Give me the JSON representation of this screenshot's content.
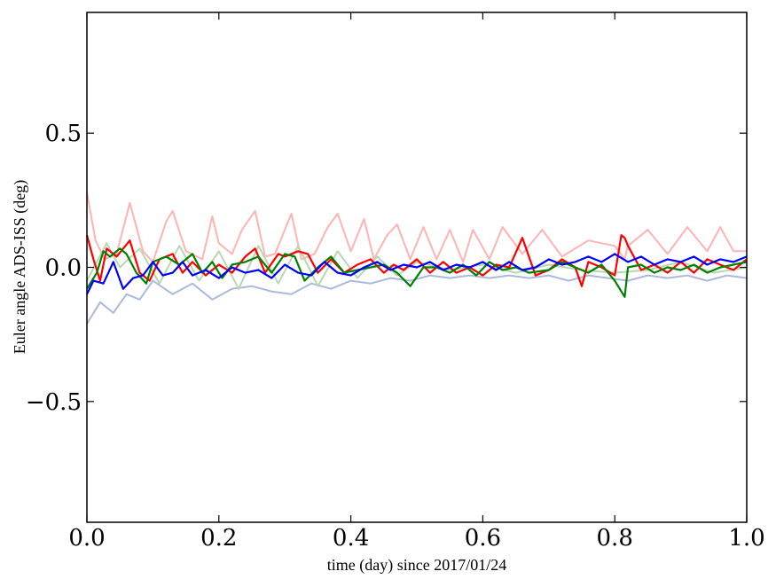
{
  "chart_data": {
    "type": "line",
    "xlabel": "time (day) since 2017/01/24",
    "ylabel": "Euler angle ADS-ISS (deg)",
    "xlim": [
      0.0,
      1.0
    ],
    "ylim": [
      -0.95,
      0.95
    ],
    "xticks": [
      {
        "value": 0.0,
        "label": "0.0"
      },
      {
        "value": 0.2,
        "label": "0.2"
      },
      {
        "value": 0.4,
        "label": "0.4"
      },
      {
        "value": 0.6,
        "label": "0.6"
      },
      {
        "value": 0.8,
        "label": "0.8"
      },
      {
        "value": 1.0,
        "label": "1.0"
      }
    ],
    "yticks": [
      {
        "value": -0.5,
        "label": "−0.5"
      },
      {
        "value": 0.0,
        "label": "0.0"
      },
      {
        "value": 0.5,
        "label": "0.5"
      }
    ],
    "grid": false,
    "legend": "none",
    "series": [
      {
        "color": "#ffb3b3",
        "x": [
          0,
          0.013,
          0.027,
          0.045,
          0.065,
          0.085,
          0.1,
          0.12,
          0.13,
          0.15,
          0.175,
          0.19,
          0.2,
          0.22,
          0.235,
          0.255,
          0.27,
          0.285,
          0.31,
          0.325,
          0.345,
          0.365,
          0.38,
          0.4,
          0.42,
          0.435,
          0.455,
          0.47,
          0.49,
          0.51,
          0.53,
          0.55,
          0.57,
          0.585,
          0.61,
          0.63,
          0.66,
          0.69,
          0.72,
          0.76,
          0.8,
          0.815,
          0.82,
          0.85,
          0.88,
          0.91,
          0.94,
          0.96,
          0.98,
          1.0
        ],
        "y": [
          0.28,
          0.1,
          0.03,
          0.05,
          0.24,
          0.06,
          0.02,
          0.17,
          0.21,
          0.06,
          0.03,
          0.19,
          0.09,
          0.05,
          0.14,
          0.21,
          0.04,
          0.05,
          0.2,
          0.03,
          0.05,
          0.15,
          0.2,
          0.06,
          0.18,
          0.03,
          0.12,
          0.16,
          0.03,
          0.15,
          0.03,
          0.14,
          0.02,
          0.14,
          0.03,
          0.15,
          0.05,
          0.14,
          0.04,
          0.1,
          0.08,
          0.03,
          0.08,
          0.14,
          0.05,
          0.15,
          0.06,
          0.15,
          0.06,
          0.06
        ]
      },
      {
        "color": "#aab9dd",
        "x": [
          0,
          0.02,
          0.04,
          0.06,
          0.08,
          0.1,
          0.13,
          0.16,
          0.19,
          0.22,
          0.25,
          0.28,
          0.31,
          0.34,
          0.37,
          0.4,
          0.43,
          0.46,
          0.49,
          0.52,
          0.55,
          0.58,
          0.61,
          0.64,
          0.67,
          0.7,
          0.73,
          0.76,
          0.79,
          0.82,
          0.85,
          0.88,
          0.91,
          0.94,
          0.97,
          1.0
        ],
        "y": [
          -0.21,
          -0.13,
          -0.17,
          -0.1,
          -0.12,
          -0.05,
          -0.1,
          -0.06,
          -0.12,
          -0.08,
          -0.07,
          -0.09,
          -0.1,
          -0.06,
          -0.08,
          -0.05,
          -0.06,
          -0.04,
          -0.05,
          -0.03,
          -0.04,
          -0.03,
          -0.04,
          -0.03,
          -0.04,
          -0.03,
          -0.05,
          -0.03,
          -0.04,
          -0.05,
          -0.03,
          -0.04,
          -0.03,
          -0.05,
          -0.03,
          -0.04
        ]
      },
      {
        "color": "#b7d7b0",
        "x": [
          0,
          0.03,
          0.05,
          0.08,
          0.11,
          0.14,
          0.17,
          0.2,
          0.23,
          0.26,
          0.29,
          0.32,
          0.35,
          0.38,
          0.41,
          0.44,
          0.47,
          0.5,
          0.55,
          0.6,
          0.65,
          0.7,
          0.75,
          0.8,
          0.85,
          0.9,
          0.95,
          1.0
        ],
        "y": [
          -0.05,
          0.09,
          0.0,
          0.07,
          -0.06,
          0.08,
          -0.05,
          0.06,
          -0.08,
          0.08,
          -0.06,
          0.08,
          -0.07,
          0.06,
          -0.04,
          0.04,
          -0.03,
          0.02,
          -0.01,
          0.01,
          -0.02,
          0.01,
          -0.01,
          -0.02,
          -0.01,
          0.02,
          -0.02,
          0.0
        ]
      },
      {
        "color": "#ff0000",
        "x": [
          0,
          0.01,
          0.02,
          0.03,
          0.045,
          0.065,
          0.08,
          0.095,
          0.11,
          0.13,
          0.145,
          0.16,
          0.18,
          0.2,
          0.22,
          0.24,
          0.255,
          0.27,
          0.29,
          0.3,
          0.32,
          0.335,
          0.35,
          0.37,
          0.39,
          0.41,
          0.43,
          0.45,
          0.465,
          0.48,
          0.5,
          0.52,
          0.54,
          0.56,
          0.58,
          0.6,
          0.62,
          0.64,
          0.66,
          0.68,
          0.7,
          0.72,
          0.74,
          0.75,
          0.76,
          0.78,
          0.8,
          0.81,
          0.815,
          0.82,
          0.84,
          0.86,
          0.88,
          0.9,
          0.92,
          0.94,
          0.96,
          0.98,
          1.0
        ],
        "y": [
          0.12,
          0.03,
          -0.05,
          0.07,
          0.04,
          0.1,
          -0.02,
          -0.05,
          0.03,
          0.05,
          -0.02,
          0.02,
          -0.03,
          0.01,
          -0.02,
          0.04,
          0.07,
          -0.02,
          0.05,
          0.04,
          0.06,
          0.05,
          -0.02,
          0.03,
          -0.02,
          0.01,
          0.03,
          -0.02,
          0.01,
          -0.01,
          0.03,
          -0.02,
          0.02,
          -0.02,
          0.0,
          -0.03,
          0.01,
          0.0,
          0.11,
          -0.03,
          -0.01,
          0.03,
          0.0,
          -0.07,
          0.02,
          0.0,
          -0.03,
          0.12,
          0.11,
          0.08,
          -0.01,
          0.01,
          -0.02,
          0.02,
          -0.02,
          0.03,
          0.01,
          -0.01,
          0.03
        ]
      },
      {
        "color": "#008000",
        "x": [
          0,
          0.015,
          0.025,
          0.035,
          0.05,
          0.06,
          0.075,
          0.09,
          0.1,
          0.12,
          0.14,
          0.16,
          0.175,
          0.19,
          0.205,
          0.22,
          0.24,
          0.26,
          0.28,
          0.3,
          0.315,
          0.33,
          0.35,
          0.37,
          0.39,
          0.41,
          0.43,
          0.45,
          0.47,
          0.49,
          0.51,
          0.53,
          0.55,
          0.57,
          0.59,
          0.61,
          0.63,
          0.65,
          0.67,
          0.7,
          0.72,
          0.74,
          0.76,
          0.78,
          0.8,
          0.81,
          0.815,
          0.82,
          0.84,
          0.86,
          0.88,
          0.9,
          0.92,
          0.94,
          0.96,
          0.98,
          1.0
        ],
        "y": [
          -0.08,
          -0.02,
          0.06,
          0.04,
          0.07,
          0.05,
          -0.02,
          -0.06,
          0.02,
          0.04,
          0.01,
          0.05,
          -0.02,
          0.02,
          -0.04,
          0.01,
          0.02,
          0.04,
          -0.02,
          0.05,
          0.04,
          -0.05,
          0.0,
          0.04,
          -0.02,
          -0.01,
          0.0,
          0.01,
          -0.02,
          -0.07,
          0.0,
          0.0,
          -0.02,
          0.01,
          -0.03,
          0.02,
          -0.01,
          0.0,
          -0.02,
          -0.01,
          0.02,
          0.0,
          -0.02,
          0.01,
          -0.05,
          -0.09,
          -0.11,
          0.0,
          0.01,
          -0.02,
          0.0,
          -0.01,
          0.01,
          -0.02,
          0.0,
          0.01,
          0.02
        ]
      },
      {
        "color": "#0000ff",
        "x": [
          0,
          0.01,
          0.025,
          0.04,
          0.055,
          0.07,
          0.085,
          0.1,
          0.115,
          0.13,
          0.145,
          0.16,
          0.18,
          0.2,
          0.22,
          0.24,
          0.26,
          0.28,
          0.3,
          0.32,
          0.34,
          0.36,
          0.38,
          0.4,
          0.42,
          0.44,
          0.46,
          0.48,
          0.5,
          0.52,
          0.54,
          0.56,
          0.58,
          0.6,
          0.62,
          0.64,
          0.66,
          0.68,
          0.7,
          0.72,
          0.74,
          0.76,
          0.78,
          0.8,
          0.82,
          0.84,
          0.86,
          0.88,
          0.9,
          0.92,
          0.94,
          0.96,
          0.98,
          1.0
        ],
        "y": [
          -0.1,
          -0.05,
          -0.06,
          0.02,
          -0.08,
          -0.04,
          -0.03,
          0.02,
          -0.03,
          -0.02,
          0.02,
          -0.03,
          -0.01,
          -0.04,
          0.0,
          -0.02,
          -0.01,
          -0.04,
          0.01,
          -0.02,
          -0.03,
          0.02,
          -0.02,
          -0.03,
          0.0,
          0.02,
          -0.01,
          0.01,
          0.0,
          0.02,
          -0.01,
          0.01,
          0.0,
          0.02,
          -0.01,
          0.02,
          -0.01,
          0.0,
          0.03,
          0.01,
          0.02,
          0.04,
          0.02,
          0.05,
          0.02,
          0.04,
          0.01,
          0.03,
          0.02,
          0.04,
          0.01,
          0.03,
          0.02,
          0.04
        ]
      }
    ]
  }
}
